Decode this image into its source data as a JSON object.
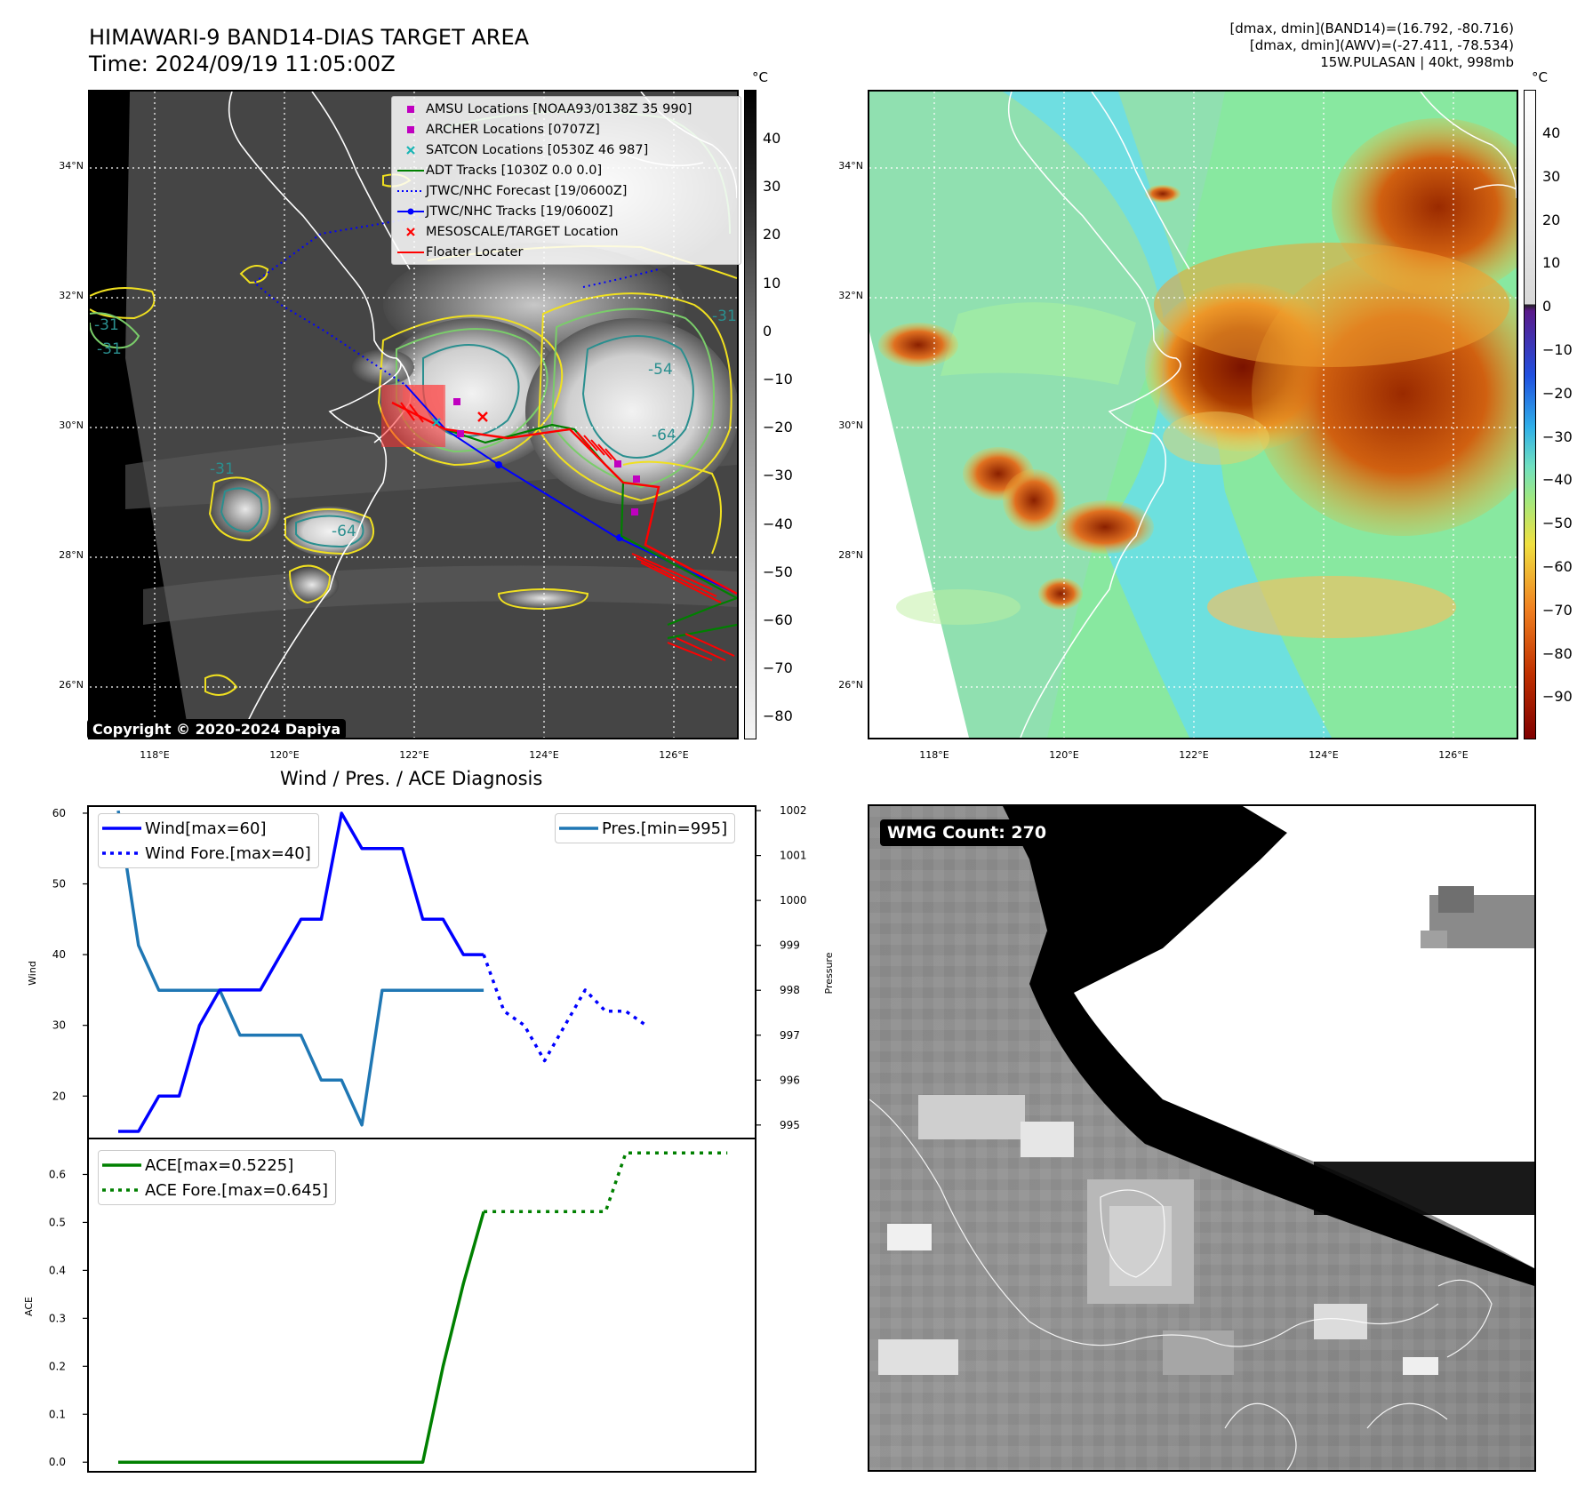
{
  "header": {
    "title_line1": "HIMAWARI-9 BAND14-DIAS TARGET AREA",
    "title_line2": "Time: 2024/09/19 11:05:00Z",
    "info_line1": "[dmax, dmin](BAND14)=(16.792, -80.716)",
    "info_line2": "[dmax, dmin](AWV)=(-27.411, -78.534)",
    "info_line3": "15W.PULASAN | 40kt, 998mb"
  },
  "map_axes": {
    "lon_ticks": [
      "118°E",
      "120°E",
      "122°E",
      "124°E",
      "126°E"
    ],
    "lat_ticks": [
      "34°N",
      "32°N",
      "30°N",
      "28°N",
      "26°N"
    ],
    "colorbar_unit": "°C"
  },
  "left_map": {
    "colorbar_ticks": [
      "40",
      "30",
      "20",
      "10",
      "0",
      "−10",
      "−20",
      "−30",
      "−40",
      "−50",
      "−60",
      "−70",
      "−80"
    ],
    "contour_labels": [
      "-31",
      "-31",
      "-31",
      "-31",
      "-54",
      "-64",
      "-64"
    ],
    "copyright": "Copyright © 2020-2024 Dapiya",
    "legend": [
      {
        "label": "AMSU Locations [NOAA93/0138Z 35 990]",
        "color": "#c000c0",
        "icon": "square-marker-icon"
      },
      {
        "label": "ARCHER Locations [0707Z]",
        "color": "#c000c0",
        "icon": "square-marker-icon"
      },
      {
        "label": "SATCON Locations [0530Z 46 987]",
        "color": "#1ab5b5",
        "icon": "x-marker-icon"
      },
      {
        "label": "ADT Tracks [1030Z 0.0 0.0]",
        "color": "#008000",
        "icon": "line-icon"
      },
      {
        "label": "JTWC/NHC Forecast [19/0600Z]",
        "color": "#0000ff",
        "icon": "dotted-line-icon"
      },
      {
        "label": "JTWC/NHC Tracks [19/0600Z]",
        "color": "#0000ff",
        "icon": "line-dot-icon"
      },
      {
        "label": "MESOSCALE/TARGET Location",
        "color": "#ff0000",
        "icon": "x-marker-icon"
      },
      {
        "label": "Floater Locater",
        "color": "#ff0000",
        "icon": "line-icon"
      }
    ]
  },
  "right_map": {
    "colorbar_ticks": [
      "40",
      "30",
      "20",
      "10",
      "0",
      "−10",
      "−20",
      "−30",
      "−40",
      "−50",
      "−60",
      "−70",
      "−80",
      "−90"
    ]
  },
  "wmg": {
    "label": "WMG Count: 270"
  },
  "chart_data": [
    {
      "type": "line",
      "title": "Wind / Pres. / ACE Diagnosis",
      "ylabel": "Wind",
      "ylabel_right": "Pressure",
      "ylim": [
        14,
        61
      ],
      "ylim_right": [
        994.7,
        1002.1
      ],
      "yticks": [
        20,
        30,
        40,
        50,
        60
      ],
      "yticks_right": [
        995,
        996,
        997,
        998,
        999,
        1000,
        1001,
        1002
      ],
      "series": [
        {
          "name": "Wind[max=60]",
          "color": "#0000ff",
          "style": "solid",
          "values": [
            15,
            15,
            20,
            20,
            30,
            35,
            35,
            35,
            40,
            45,
            45,
            60,
            55,
            55,
            55,
            45,
            45,
            40,
            40
          ]
        },
        {
          "name": "Wind Fore.[max=40]",
          "color": "#0000ff",
          "style": "dotted",
          "values": [
            40,
            32,
            30,
            25,
            30,
            35,
            32,
            32,
            30
          ]
        },
        {
          "name": "Pres.[min=995]",
          "color": "#1f77b4",
          "style": "solid",
          "axis": "right",
          "values": [
            1002,
            999,
            998,
            998,
            998,
            998,
            997,
            997,
            997,
            997,
            996,
            996,
            995,
            998,
            998,
            998,
            998,
            998,
            998
          ]
        }
      ]
    },
    {
      "type": "line",
      "ylabel": "ACE",
      "ylim": [
        -0.02,
        0.675
      ],
      "yticks": [
        0.0,
        0.1,
        0.2,
        0.3,
        0.4,
        0.5,
        0.6
      ],
      "series": [
        {
          "name": "ACE[max=0.5225]",
          "color": "#008000",
          "style": "solid",
          "values": [
            0,
            0,
            0,
            0,
            0,
            0,
            0,
            0,
            0,
            0,
            0,
            0,
            0,
            0,
            0,
            0,
            0.2,
            0.3725,
            0.5225
          ]
        },
        {
          "name": "ACE Fore.[max=0.645]",
          "color": "#008000",
          "style": "dotted",
          "values": [
            0.5225,
            0.5225,
            0.5225,
            0.5225,
            0.5225,
            0.5225,
            0.5225,
            0.645,
            0.645,
            0.645,
            0.645,
            0.645,
            0.645
          ]
        }
      ]
    }
  ]
}
